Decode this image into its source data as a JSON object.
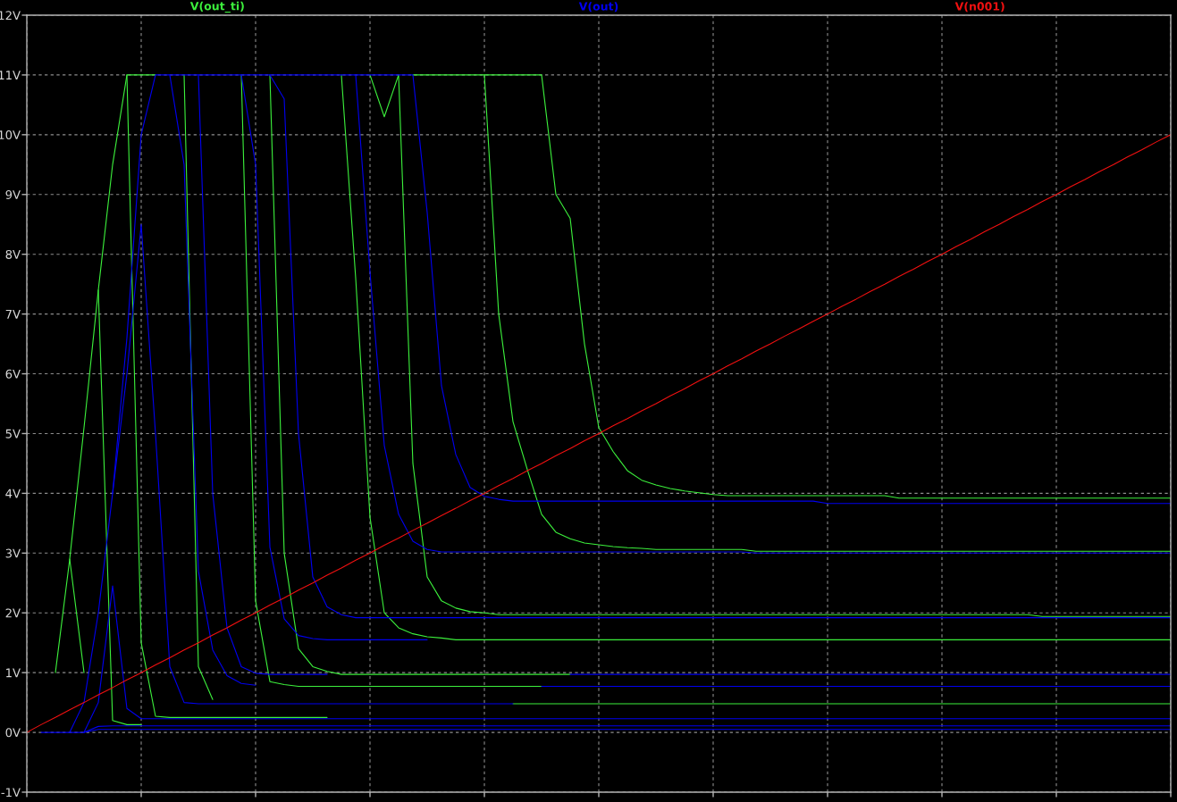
{
  "chart_data": {
    "type": "line",
    "categories": [
      null,
      null,
      null,
      null,
      null,
      null,
      null,
      null,
      null,
      null,
      null,
      null,
      null,
      null,
      null,
      null,
      null,
      null,
      null,
      null,
      null,
      null,
      null,
      null,
      null,
      null,
      null,
      null,
      null,
      null,
      null,
      null,
      null,
      null,
      null,
      null,
      null,
      null,
      null,
      null,
      null,
      null,
      null,
      null,
      null,
      null,
      null,
      null,
      null,
      null,
      null,
      null,
      null,
      null,
      null,
      null,
      null,
      null,
      null,
      null,
      null,
      null,
      null,
      null,
      null,
      null,
      null,
      null,
      null,
      null,
      null,
      null,
      null,
      null,
      null,
      null,
      null,
      null,
      null,
      null,
      null
    ],
    "ylim": [
      -1,
      12
    ],
    "yticks": [
      {
        "value": -1,
        "label": "-1V"
      },
      {
        "value": 0,
        "label": "0V"
      },
      {
        "value": 1,
        "label": "1V"
      },
      {
        "value": 2,
        "label": "2V"
      },
      {
        "value": 3,
        "label": "3V"
      },
      {
        "value": 4,
        "label": "4V"
      },
      {
        "value": 5,
        "label": "5V"
      },
      {
        "value": 6,
        "label": "6V"
      },
      {
        "value": 7,
        "label": "7V"
      },
      {
        "value": 8,
        "label": "8V"
      },
      {
        "value": 9,
        "label": "9V"
      },
      {
        "value": 10,
        "label": "10V"
      },
      {
        "value": 11,
        "label": "11V"
      },
      {
        "value": 12,
        "label": "12V"
      }
    ],
    "grid": true,
    "legend": "top",
    "tick_labels": "y",
    "series": [
      {
        "name": "V(out_ti)",
        "color": "#3cf03c",
        "values": [
          null,
          null,
          null,
          2.9,
          1,
          null,
          null,
          null,
          null,
          null,
          null,
          null,
          null,
          null,
          null,
          null,
          null,
          null,
          null,
          null,
          null,
          null,
          null,
          null,
          null,
          null,
          null,
          null,
          null,
          null,
          null,
          null,
          null,
          null,
          null,
          null,
          null,
          null,
          null,
          null,
          null,
          null,
          null,
          null,
          null,
          null,
          null,
          null,
          null,
          null,
          null,
          null,
          null,
          null,
          null,
          null,
          null,
          null,
          null,
          null,
          null,
          null,
          null,
          null,
          null,
          null,
          null,
          null,
          null,
          null,
          null,
          null,
          null,
          null,
          null,
          null,
          null,
          null,
          null,
          null,
          null
        ]
      },
      {
        "color": "#3cf03c",
        "values": [
          null,
          null,
          null,
          null,
          null,
          7.4,
          0.2,
          0.13,
          0.13,
          null,
          null,
          null,
          null,
          null,
          null,
          null,
          null,
          null,
          null,
          null,
          null,
          null,
          null,
          null,
          null,
          null,
          null,
          null,
          null,
          null,
          null,
          null,
          null,
          null,
          null,
          null,
          null,
          null,
          null,
          null,
          null,
          null,
          null,
          null,
          null,
          null,
          null,
          null,
          null,
          null,
          null,
          null,
          null,
          null,
          null,
          null,
          null,
          null,
          null,
          null,
          null,
          null,
          null,
          null,
          null,
          null,
          null,
          null,
          null,
          null,
          null,
          null,
          null,
          null,
          null,
          null,
          null,
          null,
          null,
          null,
          null
        ]
      },
      {
        "color": "#3cf03c",
        "values": [
          null,
          null,
          null,
          null,
          null,
          null,
          null,
          11,
          1.5,
          0.27,
          0.25,
          0.25,
          0.25,
          0.25,
          0.25,
          0.25,
          0.25,
          0.25,
          0.25,
          0.25,
          0.25,
          0.25,
          null,
          null,
          null,
          null,
          null,
          null,
          null,
          null,
          null,
          null,
          null,
          null,
          null,
          null,
          null,
          null,
          null,
          null,
          null,
          null,
          null,
          null,
          null,
          null,
          null,
          null,
          null,
          null,
          null,
          null,
          null,
          null,
          null,
          null,
          null,
          null,
          null,
          null,
          null,
          null,
          null,
          null,
          null,
          null,
          null,
          null,
          null,
          null,
          null,
          null,
          null,
          null,
          null,
          null,
          null,
          null,
          null,
          null,
          null
        ]
      },
      {
        "color": "#3cf03c",
        "values": [
          null,
          null,
          null,
          null,
          null,
          null,
          null,
          null,
          null,
          null,
          null,
          11,
          1.1,
          0.55,
          null,
          null,
          null,
          null,
          null,
          null,
          null,
          null,
          null,
          null,
          null,
          null,
          null,
          null,
          null,
          null,
          null,
          null,
          null,
          null,
          0.48,
          0.48,
          0.48,
          0.48,
          0.48,
          0.48,
          0.48,
          0.48,
          0.48,
          0.48,
          0.48,
          0.48,
          0.48,
          0.48,
          0.48,
          0.48,
          0.48,
          0.48,
          0.48,
          0.48,
          0.48,
          0.48,
          0.48,
          0.48,
          0.48,
          0.48,
          0.48,
          0.48,
          0.48,
          0.48,
          0.48,
          0.48,
          0.48,
          0.48,
          0.48,
          0.48,
          0.48,
          0.48,
          0.48,
          0.48,
          0.48,
          0.48,
          0.48,
          0.48,
          0.48,
          0.48,
          0.48
        ]
      },
      {
        "color": "#3cf03c",
        "values": [
          null,
          null,
          null,
          null,
          null,
          null,
          null,
          null,
          null,
          null,
          null,
          null,
          null,
          null,
          null,
          11,
          2.2,
          0.85,
          0.8,
          0.77,
          0.77,
          0.77,
          0.77,
          0.77,
          0.77,
          0.77,
          0.77,
          0.77,
          0.77,
          0.77,
          0.77,
          0.77,
          0.77,
          0.77,
          0.77,
          0.77,
          0.77,
          null,
          null,
          null,
          null,
          null,
          null,
          null,
          null,
          null,
          null,
          null,
          null,
          null,
          null,
          null,
          null,
          null,
          null,
          null,
          null,
          null,
          null,
          null,
          null,
          null,
          null,
          null,
          null,
          null,
          null,
          null,
          null,
          null,
          null,
          null,
          null,
          null,
          null,
          null,
          null,
          null,
          null,
          null,
          null
        ]
      },
      {
        "color": "#3cf03c",
        "values": [
          null,
          null,
          null,
          null,
          null,
          null,
          null,
          null,
          null,
          null,
          null,
          null,
          null,
          null,
          null,
          null,
          null,
          11,
          3,
          1.4,
          1.1,
          1.02,
          0.97,
          0.97,
          0.97,
          0.97,
          0.97,
          0.97,
          0.97,
          0.97,
          0.97,
          0.97,
          0.97,
          0.97,
          0.97,
          0.97,
          0.97,
          0.97,
          0.97,
          null,
          null,
          null,
          null,
          null,
          null,
          null,
          null,
          null,
          null,
          null,
          null,
          null,
          null,
          null,
          null,
          null,
          null,
          null,
          null,
          null,
          null,
          null,
          null,
          null,
          null,
          null,
          null,
          null,
          null,
          null,
          null,
          null,
          null,
          null,
          null,
          null,
          null,
          null,
          null,
          null,
          null
        ]
      },
      {
        "color": "#3cf03c",
        "values": [
          null,
          null,
          null,
          null,
          null,
          null,
          null,
          null,
          null,
          null,
          null,
          null,
          null,
          null,
          null,
          null,
          null,
          null,
          null,
          null,
          null,
          null,
          11,
          7.6,
          3.6,
          2,
          1.75,
          1.65,
          1.6,
          1.58,
          1.55,
          1.55,
          1.55,
          1.55,
          1.55,
          1.55,
          1.55,
          1.55,
          1.55,
          1.55,
          1.55,
          1.55,
          1.55,
          1.55,
          1.55,
          1.55,
          1.55,
          1.55,
          1.55,
          1.55,
          1.55,
          1.55,
          1.55,
          1.55,
          1.55,
          1.55,
          1.55,
          1.55,
          1.55,
          1.55,
          1.55,
          1.55,
          1.55,
          1.55,
          1.55,
          1.55,
          1.55,
          1.55,
          1.55,
          1.55,
          1.55,
          1.55,
          1.55,
          1.55,
          1.55,
          1.55,
          1.55,
          1.55,
          1.55,
          1.55,
          1.55
        ]
      },
      {
        "color": "#3cf03c",
        "values": [
          null,
          null,
          null,
          null,
          null,
          null,
          null,
          null,
          null,
          null,
          null,
          null,
          null,
          null,
          null,
          null,
          null,
          null,
          null,
          null,
          null,
          null,
          null,
          null,
          11,
          10.3,
          11,
          4.5,
          2.6,
          2.2,
          2.08,
          2.02,
          2,
          1.97,
          1.97,
          1.97,
          1.97,
          1.97,
          1.97,
          1.97,
          1.97,
          1.97,
          1.97,
          1.97,
          1.97,
          1.97,
          1.97,
          1.97,
          1.97,
          1.97,
          1.97,
          1.97,
          1.97,
          1.97,
          1.97,
          1.97,
          1.97,
          1.97,
          1.97,
          1.97,
          1.97,
          1.97,
          1.97,
          1.97,
          1.97,
          1.97,
          1.97,
          1.97,
          1.97,
          1.97,
          1.97,
          1.94,
          1.94,
          1.94,
          1.94,
          1.94,
          1.94,
          1.94,
          1.94,
          1.94,
          1.94
        ]
      },
      {
        "color": "#3cf03c",
        "values": [
          null,
          null,
          null,
          null,
          null,
          null,
          null,
          null,
          null,
          null,
          null,
          null,
          null,
          null,
          null,
          null,
          null,
          null,
          null,
          null,
          null,
          null,
          null,
          null,
          null,
          null,
          null,
          null,
          null,
          null,
          null,
          null,
          11,
          7,
          5.2,
          4.4,
          3.65,
          3.35,
          3.24,
          3.17,
          3.14,
          3.11,
          3.09,
          3.08,
          3.06,
          3.06,
          3.06,
          3.06,
          3.06,
          3.06,
          3.06,
          3.03,
          3.03,
          3.03,
          3.03,
          3.03,
          3.03,
          3.03,
          3.03,
          3.03,
          3.03,
          3.03,
          3.03,
          3.03,
          3.03,
          3.03,
          3.03,
          3.03,
          3.03,
          3.03,
          3.03,
          3.03,
          3.03,
          3.03,
          3.03,
          3.03,
          3.03,
          3.03,
          3.03,
          3.03,
          3.03
        ]
      },
      {
        "color": "#3cf03c",
        "values": [
          null,
          null,
          1,
          2.9,
          5.1,
          7.4,
          9.5,
          11,
          11,
          11,
          null,
          null,
          null,
          null,
          null,
          null,
          null,
          null,
          null,
          null,
          null,
          null,
          null,
          null,
          null,
          null,
          null,
          11,
          11,
          11,
          11,
          11,
          11,
          11,
          11,
          11,
          11,
          9,
          8.6,
          6.5,
          5.1,
          4.7,
          4.38,
          4.22,
          4.14,
          4.08,
          4.04,
          4.01,
          3.98,
          3.96,
          3.96,
          3.96,
          3.96,
          3.96,
          3.96,
          3.96,
          3.96,
          3.96,
          3.96,
          3.96,
          3.96,
          3.92,
          3.92,
          3.92,
          3.92,
          3.92,
          3.92,
          3.92,
          3.92,
          3.92,
          3.92,
          3.92,
          3.92,
          3.92,
          3.92,
          3.92,
          3.92,
          3.92,
          3.92,
          3.92,
          3.92
        ]
      },
      {
        "name": "V(out)",
        "color": "#0000f0",
        "values": [
          null,
          null,
          null,
          0,
          0,
          0.05,
          0.05,
          0.05,
          0.05,
          0.05,
          0.05,
          0.05,
          0.05,
          0.05,
          0.05,
          0.05,
          0.05,
          0.05,
          0.05,
          0.05,
          0.05,
          0.05,
          0.05,
          0.05,
          0.05,
          0.05,
          0.05,
          0.05,
          0.05,
          0.05,
          0.05,
          0.05,
          0.05,
          0.05,
          0.05,
          0.05,
          0.05,
          0.05,
          0.05,
          0.05,
          0.05,
          0.05,
          0.05,
          0.05,
          0.05,
          0.05,
          0.05,
          0.05,
          0.05,
          0.05,
          0.05,
          0.05,
          0.05,
          0.05,
          0.05,
          0.05,
          0.05,
          0.05,
          0.05,
          0.05,
          0.05,
          0.05,
          0.05,
          0.05,
          0.05,
          0.05,
          0.05,
          0.05,
          0.05,
          0.05,
          0.05,
          0.05,
          0.05,
          0.05,
          0.05,
          0.05,
          0.05,
          0.05,
          0.05,
          0.05,
          0.05
        ]
      },
      {
        "color": "#0000f0",
        "values": [
          null,
          null,
          null,
          null,
          0,
          0.1,
          0.11,
          0.11,
          0.11,
          0.11,
          0.11,
          0.11,
          0.11,
          0.11,
          0.11,
          0.11,
          0.11,
          0.11,
          0.11,
          0.11,
          0.11,
          0.11,
          0.11,
          0.11,
          0.11,
          0.11,
          0.11,
          0.11,
          0.11,
          0.11,
          0.11,
          0.11,
          0.11,
          0.11,
          0.11,
          0.11,
          0.11,
          0.11,
          0.11,
          0.11,
          0.11,
          0.11,
          0.11,
          0.11,
          0.11,
          0.11,
          0.11,
          0.11,
          0.11,
          0.11,
          0.11,
          0.11,
          0.11,
          0.11,
          0.11,
          0.11,
          0.11,
          0.11,
          0.11,
          0.11,
          0.11,
          0.11,
          0.11,
          0.11,
          0.11,
          0.11,
          0.11,
          0.11,
          0.11,
          0.11,
          0.11,
          0.11,
          0.11,
          0.11,
          0.11,
          0.11,
          0.11,
          0.11,
          0.11,
          0.11,
          0.11
        ]
      },
      {
        "color": "#0000f0",
        "values": [
          null,
          null,
          null,
          null,
          0,
          0.5,
          2.45,
          0.4,
          0.23,
          0.23,
          0.23,
          0.23,
          0.23,
          0.23,
          0.23,
          0.23,
          0.23,
          0.23,
          0.23,
          0.23,
          0.23,
          0.23,
          0.23,
          0.23,
          0.23,
          0.23,
          0.23,
          0.23,
          0.23,
          0.23,
          0.23,
          0.23,
          0.23,
          0.23,
          0.23,
          0.23,
          0.23,
          0.23,
          0.23,
          0.23,
          0.23,
          0.23,
          0.23,
          0.23,
          0.23,
          0.23,
          0.23,
          0.23,
          0.23,
          0.23,
          0.23,
          0.23,
          0.23,
          0.23,
          0.23,
          0.23,
          0.23,
          0.23,
          0.23,
          0.23,
          0.23,
          0.23,
          0.23,
          0.23,
          0.23,
          0.23,
          0.23,
          0.23,
          0.23,
          0.23,
          0.23,
          0.23,
          0.23,
          0.23,
          0.23,
          0.23,
          0.23,
          0.23,
          0.23,
          0.23,
          0.23
        ]
      },
      {
        "color": "#0000f0",
        "values": [
          null,
          null,
          null,
          null,
          null,
          null,
          4,
          6,
          8.5,
          5,
          1.1,
          0.5,
          0.48,
          0.48,
          0.48,
          0.48,
          0.48,
          0.48,
          0.48,
          0.48,
          0.48,
          0.48,
          0.48,
          0.48,
          0.48,
          0.48,
          0.48,
          0.48,
          0.48,
          0.48,
          0.48,
          0.48,
          0.48,
          0.48,
          0.48,
          null,
          null,
          null,
          null,
          null,
          null,
          null,
          null,
          null,
          null,
          null,
          null,
          null,
          null,
          null,
          null,
          null,
          null,
          null,
          null,
          null,
          null,
          null,
          null,
          null,
          null,
          null,
          null,
          null,
          null,
          null,
          null,
          null,
          null,
          null,
          null,
          null,
          null,
          null,
          null,
          null,
          null,
          null,
          null,
          null,
          null
        ]
      },
      {
        "color": "#0000f0",
        "values": [
          null,
          null,
          null,
          null,
          null,
          null,
          null,
          null,
          null,
          null,
          11,
          9.5,
          2.7,
          1.38,
          0.95,
          0.82,
          0.79,
          null,
          null,
          null,
          null,
          null,
          null,
          null,
          null,
          null,
          null,
          null,
          null,
          null,
          null,
          null,
          null,
          null,
          null,
          null,
          0.77,
          0.77,
          0.77,
          0.77,
          0.77,
          0.77,
          0.77,
          0.77,
          0.77,
          0.77,
          0.77,
          0.77,
          0.77,
          0.77,
          0.77,
          0.77,
          0.77,
          0.77,
          0.77,
          0.77,
          0.77,
          0.77,
          0.77,
          0.77,
          0.77,
          0.77,
          0.77,
          0.77,
          0.77,
          0.77,
          0.77,
          0.77,
          0.77,
          0.77,
          0.77,
          0.77,
          0.77,
          0.77,
          0.77,
          0.77,
          0.77,
          0.77,
          0.77,
          0.77,
          0.77
        ]
      },
      {
        "color": "#0000f0",
        "values": [
          null,
          null,
          null,
          null,
          null,
          null,
          null,
          null,
          null,
          null,
          null,
          null,
          11,
          4,
          1.75,
          1.1,
          0.99,
          0.97,
          0.97,
          0.97,
          0.97,
          0.97,
          null,
          null,
          null,
          null,
          null,
          null,
          null,
          null,
          null,
          null,
          null,
          null,
          null,
          null,
          null,
          null,
          0.97,
          0.97,
          0.97,
          0.97,
          0.97,
          0.97,
          0.97,
          0.97,
          0.97,
          0.97,
          0.97,
          0.97,
          0.97,
          0.97,
          0.97,
          0.97,
          0.97,
          0.97,
          0.97,
          0.97,
          0.97,
          0.97,
          0.97,
          0.97,
          0.97,
          0.97,
          0.97,
          0.97,
          0.97,
          0.97,
          0.97,
          0.97,
          0.97,
          0.97,
          0.97,
          0.97,
          0.97,
          0.97,
          0.97,
          0.97,
          0.97,
          0.97,
          0.97
        ]
      },
      {
        "color": "#0000f0",
        "values": [
          null,
          null,
          null,
          null,
          null,
          null,
          null,
          null,
          null,
          null,
          null,
          null,
          null,
          null,
          null,
          11,
          9.5,
          3.1,
          1.9,
          1.62,
          1.57,
          1.55,
          1.55,
          1.55,
          1.55,
          1.55,
          1.55,
          1.55,
          1.55,
          null,
          null,
          null,
          null,
          null,
          null,
          null,
          null,
          null,
          null,
          null,
          null,
          null,
          null,
          null,
          null,
          null,
          null,
          null,
          null,
          null,
          null,
          null,
          null,
          null,
          null,
          null,
          null,
          null,
          null,
          null,
          null,
          null,
          null,
          null,
          null,
          null,
          null,
          null,
          null,
          null,
          null,
          null,
          null,
          null,
          null,
          null,
          null,
          null,
          null,
          null,
          null
        ]
      },
      {
        "color": "#0000f0",
        "values": [
          null,
          null,
          null,
          null,
          null,
          null,
          null,
          null,
          null,
          null,
          null,
          null,
          null,
          null,
          null,
          null,
          null,
          11,
          10.6,
          5,
          2.6,
          2.1,
          1.97,
          1.92,
          1.92,
          1.92,
          1.92,
          1.92,
          1.92,
          1.92,
          1.92,
          1.92,
          1.92,
          1.92,
          1.92,
          1.92,
          1.92,
          1.92,
          1.92,
          1.92,
          1.92,
          1.92,
          1.92,
          1.92,
          1.92,
          1.92,
          1.92,
          1.92,
          1.92,
          1.92,
          1.92,
          1.92,
          1.92,
          1.92,
          1.92,
          1.92,
          1.92,
          1.92,
          1.92,
          1.92,
          1.92,
          1.92,
          1.92,
          1.92,
          1.92,
          1.92,
          1.92,
          1.92,
          1.92,
          1.92,
          1.92,
          1.92,
          1.92,
          1.92,
          1.92,
          1.92,
          1.92,
          1.92,
          1.92,
          1.92,
          1.92
        ]
      },
      {
        "color": "#0000f0",
        "values": [
          null,
          null,
          null,
          null,
          null,
          null,
          null,
          null,
          null,
          null,
          null,
          null,
          null,
          null,
          null,
          null,
          null,
          null,
          null,
          null,
          null,
          null,
          null,
          11,
          7.7,
          4.8,
          3.65,
          3.2,
          3.06,
          3.02,
          3.02,
          3.02,
          3.02,
          3.02,
          3.02,
          3.02,
          3.02,
          3.02,
          3.02,
          3.02,
          3.02,
          3.02,
          3.02,
          3.02,
          3.02,
          3.02,
          3.02,
          3.02,
          3.02,
          3.02,
          3.02,
          3,
          3,
          3,
          3,
          3,
          3,
          3,
          3,
          3,
          3,
          3,
          3,
          3,
          3,
          3,
          3,
          3,
          3,
          3,
          3,
          3,
          3,
          3,
          3,
          3,
          3,
          3,
          3,
          3,
          3
        ]
      },
      {
        "color": "#0000f0",
        "values": [
          null,
          0,
          0,
          0,
          0.5,
          2,
          4,
          6.6,
          10,
          11,
          11,
          11,
          11,
          11,
          11,
          11,
          11,
          11,
          11,
          11,
          11,
          11,
          11,
          11,
          11,
          11,
          11,
          11,
          8.7,
          5.8,
          4.65,
          4.1,
          3.95,
          3.9,
          3.87,
          3.87,
          3.87,
          3.87,
          3.87,
          3.87,
          3.87,
          3.87,
          3.87,
          3.87,
          3.87,
          3.87,
          3.87,
          3.87,
          3.87,
          3.87,
          3.87,
          3.87,
          3.87,
          3.87,
          3.87,
          3.87,
          3.83,
          3.83,
          3.83,
          3.83,
          3.83,
          3.83,
          3.83,
          3.83,
          3.83,
          3.83,
          3.83,
          3.83,
          3.83,
          3.83,
          3.83,
          3.83,
          3.83,
          3.83,
          3.83,
          3.83,
          3.83,
          3.83,
          3.83,
          3.83,
          3.83
        ]
      },
      {
        "name": "V(n001)",
        "color": "#f01010",
        "values": [
          0,
          0.13,
          0.25,
          0.38,
          0.5,
          0.63,
          0.75,
          0.88,
          1,
          1.13,
          1.25,
          1.38,
          1.5,
          1.63,
          1.75,
          1.88,
          2,
          2.13,
          2.25,
          2.38,
          2.5,
          2.63,
          2.75,
          2.88,
          3,
          3.13,
          3.25,
          3.38,
          3.5,
          3.63,
          3.75,
          3.88,
          4,
          4.13,
          4.25,
          4.38,
          4.5,
          4.63,
          4.75,
          4.88,
          5,
          5.13,
          5.25,
          5.38,
          5.5,
          5.63,
          5.75,
          5.88,
          6,
          6.13,
          6.25,
          6.38,
          6.5,
          6.63,
          6.75,
          6.88,
          7,
          7.13,
          7.25,
          7.38,
          7.5,
          7.63,
          7.75,
          7.88,
          8,
          8.13,
          8.25,
          8.38,
          8.5,
          8.63,
          8.75,
          8.88,
          9,
          9.13,
          9.25,
          9.38,
          9.5,
          9.63,
          9.75,
          9.88,
          10
        ]
      }
    ]
  }
}
